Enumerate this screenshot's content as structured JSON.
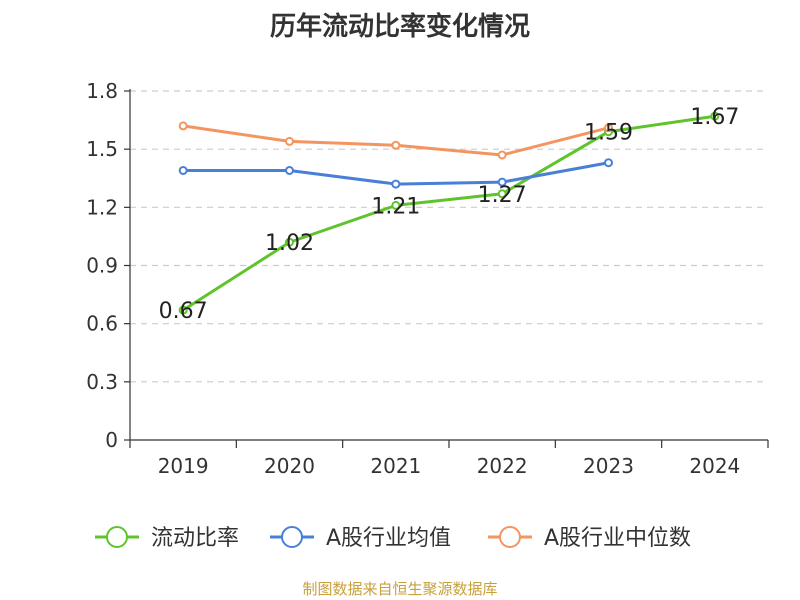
{
  "chart_data": {
    "type": "line",
    "title": "历年流动比率变化情况",
    "categories": [
      "2019",
      "2020",
      "2021",
      "2022",
      "2023",
      "2024"
    ],
    "ylim": [
      0,
      1.8
    ],
    "yticks": [
      "0",
      "0.3",
      "0.6",
      "0.9",
      "1.2",
      "1.5",
      "1.8"
    ],
    "grid": true,
    "legend_position": "bottom",
    "series": [
      {
        "name": "流动比率",
        "color": "#5fc42c",
        "values": [
          0.67,
          1.02,
          1.21,
          1.27,
          1.59,
          1.67
        ],
        "labels": [
          "0.67",
          "1.02",
          "1.21",
          "1.27",
          "1.59",
          "1.67"
        ]
      },
      {
        "name": "A股行业均值",
        "color": "#4a7fd8",
        "values": [
          1.39,
          1.39,
          1.32,
          1.33,
          1.43,
          null
        ]
      },
      {
        "name": "A股行业中位数",
        "color": "#f39560",
        "values": [
          1.62,
          1.54,
          1.52,
          1.47,
          1.61,
          null
        ]
      }
    ]
  },
  "source_note": "制图数据来自恒生聚源数据库"
}
